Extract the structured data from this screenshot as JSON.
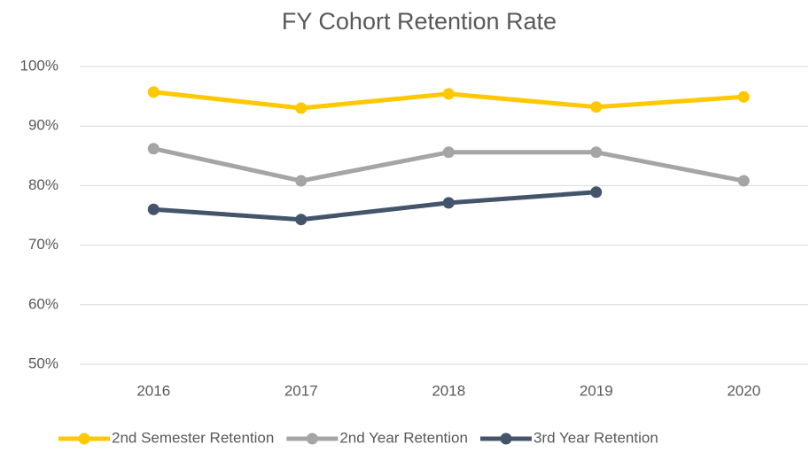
{
  "chart_data": {
    "type": "line",
    "title": "FY Cohort Retention Rate",
    "categories": [
      "2016",
      "2017",
      "2018",
      "2019",
      "2020"
    ],
    "series": [
      {
        "name": "2nd Semester Retention",
        "color": "#ffc800",
        "values": [
          95.7,
          93.0,
          95.4,
          93.2,
          94.9
        ]
      },
      {
        "name": "2nd Year Retention",
        "color": "#a5a5a5",
        "values": [
          86.2,
          80.8,
          85.6,
          85.6,
          80.8
        ]
      },
      {
        "name": "3rd Year Retention",
        "color": "#44546a",
        "values": [
          76.0,
          74.3,
          77.1,
          78.9,
          null
        ]
      }
    ],
    "ylim": [
      50,
      100
    ],
    "yticks": [
      {
        "value": 50,
        "label": "50%"
      },
      {
        "value": 60,
        "label": "60%"
      },
      {
        "value": 70,
        "label": "70%"
      },
      {
        "value": 80,
        "label": "80%"
      },
      {
        "value": 90,
        "label": "90%"
      },
      {
        "value": 100,
        "label": "100%"
      }
    ],
    "grid": true,
    "legend": "bottom"
  }
}
